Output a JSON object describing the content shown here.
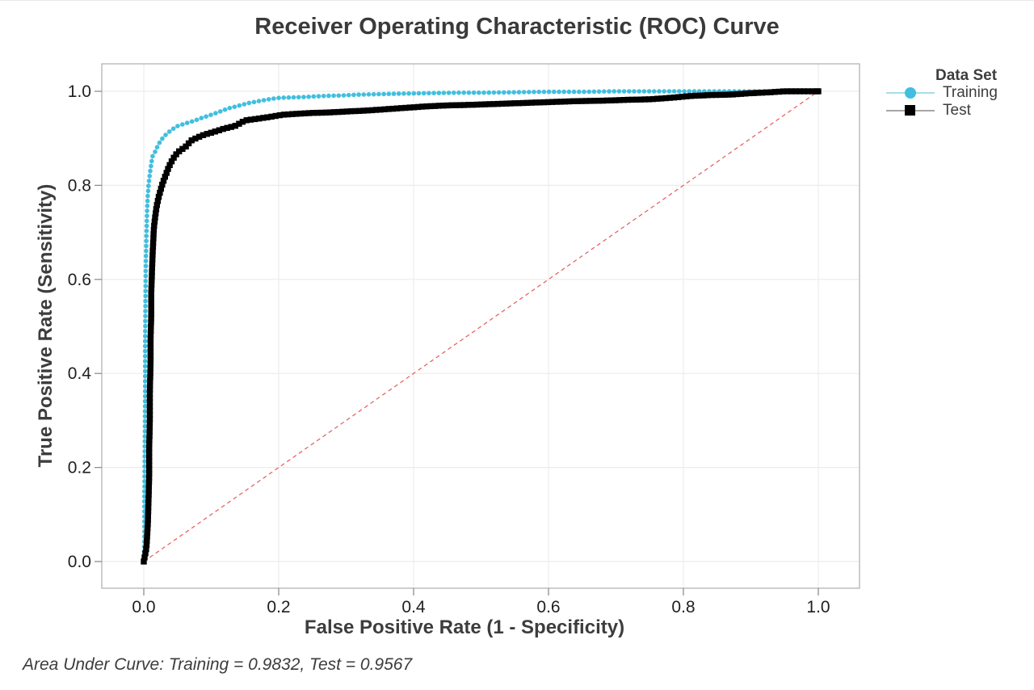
{
  "chart_data": {
    "type": "line",
    "title": "Receiver Operating Characteristic (ROC) Curve",
    "xlabel": "False Positive Rate (1 - Specificity)",
    "ylabel": "True Positive Rate (Sensitivity)",
    "xlim": [
      -0.06,
      1.06
    ],
    "ylim": [
      -0.06,
      1.06
    ],
    "grid": true,
    "x_tick_labels": [
      "0.0",
      "0.2",
      "0.4",
      "0.6",
      "0.8",
      "1.0"
    ],
    "x_tick_values": [
      0,
      0.2,
      0.4,
      0.6,
      0.8,
      1.0
    ],
    "y_tick_labels": [
      "0.0",
      "0.2",
      "0.4",
      "0.6",
      "0.8",
      "1.0"
    ],
    "y_tick_values": [
      0,
      0.2,
      0.4,
      0.6,
      0.8,
      1.0
    ],
    "legend": {
      "title": "Data Set",
      "position": "right"
    },
    "colors": {
      "grid": "#ececec",
      "frame": "#b3b3b3",
      "tick_mark": "#8f8f8f",
      "diagonal": "#e25b5b"
    },
    "reference_line": {
      "from": [
        0,
        0
      ],
      "to": [
        1,
        1
      ],
      "style": "dashed",
      "color": "#e25b5b"
    },
    "series": [
      {
        "name": "Training",
        "marker": "circle",
        "color": "#41bfdf",
        "line_color": "#a5dded",
        "auc": 0.9832,
        "points": [
          [
            0.0,
            0.0
          ],
          [
            0.001,
            0.05
          ],
          [
            0.001,
            0.15
          ],
          [
            0.0015,
            0.25
          ],
          [
            0.002,
            0.35
          ],
          [
            0.002,
            0.45
          ],
          [
            0.0025,
            0.55
          ],
          [
            0.003,
            0.63
          ],
          [
            0.004,
            0.7
          ],
          [
            0.005,
            0.75
          ],
          [
            0.006,
            0.78
          ],
          [
            0.007,
            0.8
          ],
          [
            0.009,
            0.825
          ],
          [
            0.011,
            0.845
          ],
          [
            0.013,
            0.862
          ],
          [
            0.017,
            0.872
          ],
          [
            0.021,
            0.885
          ],
          [
            0.025,
            0.895
          ],
          [
            0.03,
            0.904
          ],
          [
            0.036,
            0.912
          ],
          [
            0.043,
            0.92
          ],
          [
            0.05,
            0.926
          ],
          [
            0.06,
            0.931
          ],
          [
            0.074,
            0.937
          ],
          [
            0.085,
            0.943
          ],
          [
            0.1,
            0.95
          ],
          [
            0.113,
            0.957
          ],
          [
            0.126,
            0.964
          ],
          [
            0.14,
            0.969
          ],
          [
            0.155,
            0.975
          ],
          [
            0.17,
            0.979
          ],
          [
            0.185,
            0.983
          ],
          [
            0.2,
            0.986
          ],
          [
            0.22,
            0.987
          ],
          [
            0.24,
            0.988
          ],
          [
            0.265,
            0.99
          ],
          [
            0.29,
            0.991
          ],
          [
            0.32,
            0.993
          ],
          [
            0.35,
            0.994
          ],
          [
            0.38,
            0.995
          ],
          [
            0.42,
            0.996
          ],
          [
            0.46,
            0.997
          ],
          [
            0.5,
            0.997
          ],
          [
            0.55,
            0.998
          ],
          [
            0.6,
            0.999
          ],
          [
            0.65,
            0.999
          ],
          [
            0.7,
            1.0
          ],
          [
            0.76,
            1.0
          ],
          [
            0.82,
            1.0
          ],
          [
            0.88,
            1.0
          ],
          [
            0.94,
            1.0
          ],
          [
            1.0,
            1.0
          ]
        ]
      },
      {
        "name": "Test",
        "marker": "square",
        "color": "#000000",
        "line_color": "#8a8a8a",
        "auc": 0.9567,
        "points": [
          [
            0.0,
            0.0
          ],
          [
            0.004,
            0.03
          ],
          [
            0.006,
            0.08
          ],
          [
            0.007,
            0.13
          ],
          [
            0.008,
            0.18
          ],
          [
            0.008,
            0.24
          ],
          [
            0.009,
            0.3
          ],
          [
            0.009,
            0.36
          ],
          [
            0.01,
            0.42
          ],
          [
            0.01,
            0.47
          ],
          [
            0.011,
            0.52
          ],
          [
            0.011,
            0.57
          ],
          [
            0.012,
            0.61
          ],
          [
            0.013,
            0.65
          ],
          [
            0.014,
            0.68
          ],
          [
            0.015,
            0.71
          ],
          [
            0.017,
            0.735
          ],
          [
            0.019,
            0.755
          ],
          [
            0.022,
            0.775
          ],
          [
            0.025,
            0.79
          ],
          [
            0.028,
            0.805
          ],
          [
            0.032,
            0.82
          ],
          [
            0.036,
            0.835
          ],
          [
            0.04,
            0.848
          ],
          [
            0.045,
            0.86
          ],
          [
            0.05,
            0.87
          ],
          [
            0.055,
            0.875
          ],
          [
            0.062,
            0.882
          ],
          [
            0.07,
            0.895
          ],
          [
            0.08,
            0.902
          ],
          [
            0.09,
            0.908
          ],
          [
            0.105,
            0.914
          ],
          [
            0.12,
            0.921
          ],
          [
            0.135,
            0.926
          ],
          [
            0.15,
            0.938
          ],
          [
            0.165,
            0.941
          ],
          [
            0.185,
            0.945
          ],
          [
            0.205,
            0.95
          ],
          [
            0.225,
            0.952
          ],
          [
            0.25,
            0.954
          ],
          [
            0.275,
            0.955
          ],
          [
            0.3,
            0.957
          ],
          [
            0.33,
            0.959
          ],
          [
            0.36,
            0.962
          ],
          [
            0.39,
            0.965
          ],
          [
            0.42,
            0.968
          ],
          [
            0.45,
            0.97
          ],
          [
            0.48,
            0.971
          ],
          [
            0.52,
            0.973
          ],
          [
            0.56,
            0.975
          ],
          [
            0.6,
            0.977
          ],
          [
            0.64,
            0.979
          ],
          [
            0.68,
            0.98
          ],
          [
            0.72,
            0.982
          ],
          [
            0.75,
            0.983
          ],
          [
            0.78,
            0.986
          ],
          [
            0.81,
            0.99
          ],
          [
            0.84,
            0.992
          ],
          [
            0.87,
            0.993
          ],
          [
            0.9,
            0.996
          ],
          [
            0.93,
            0.998
          ],
          [
            0.95,
            1.0
          ],
          [
            1.0,
            1.0
          ]
        ]
      }
    ],
    "annotation": "Area Under Curve: Training = 0.9832, Test = 0.9567",
    "auc": {
      "training": 0.9832,
      "test": 0.9567
    }
  }
}
